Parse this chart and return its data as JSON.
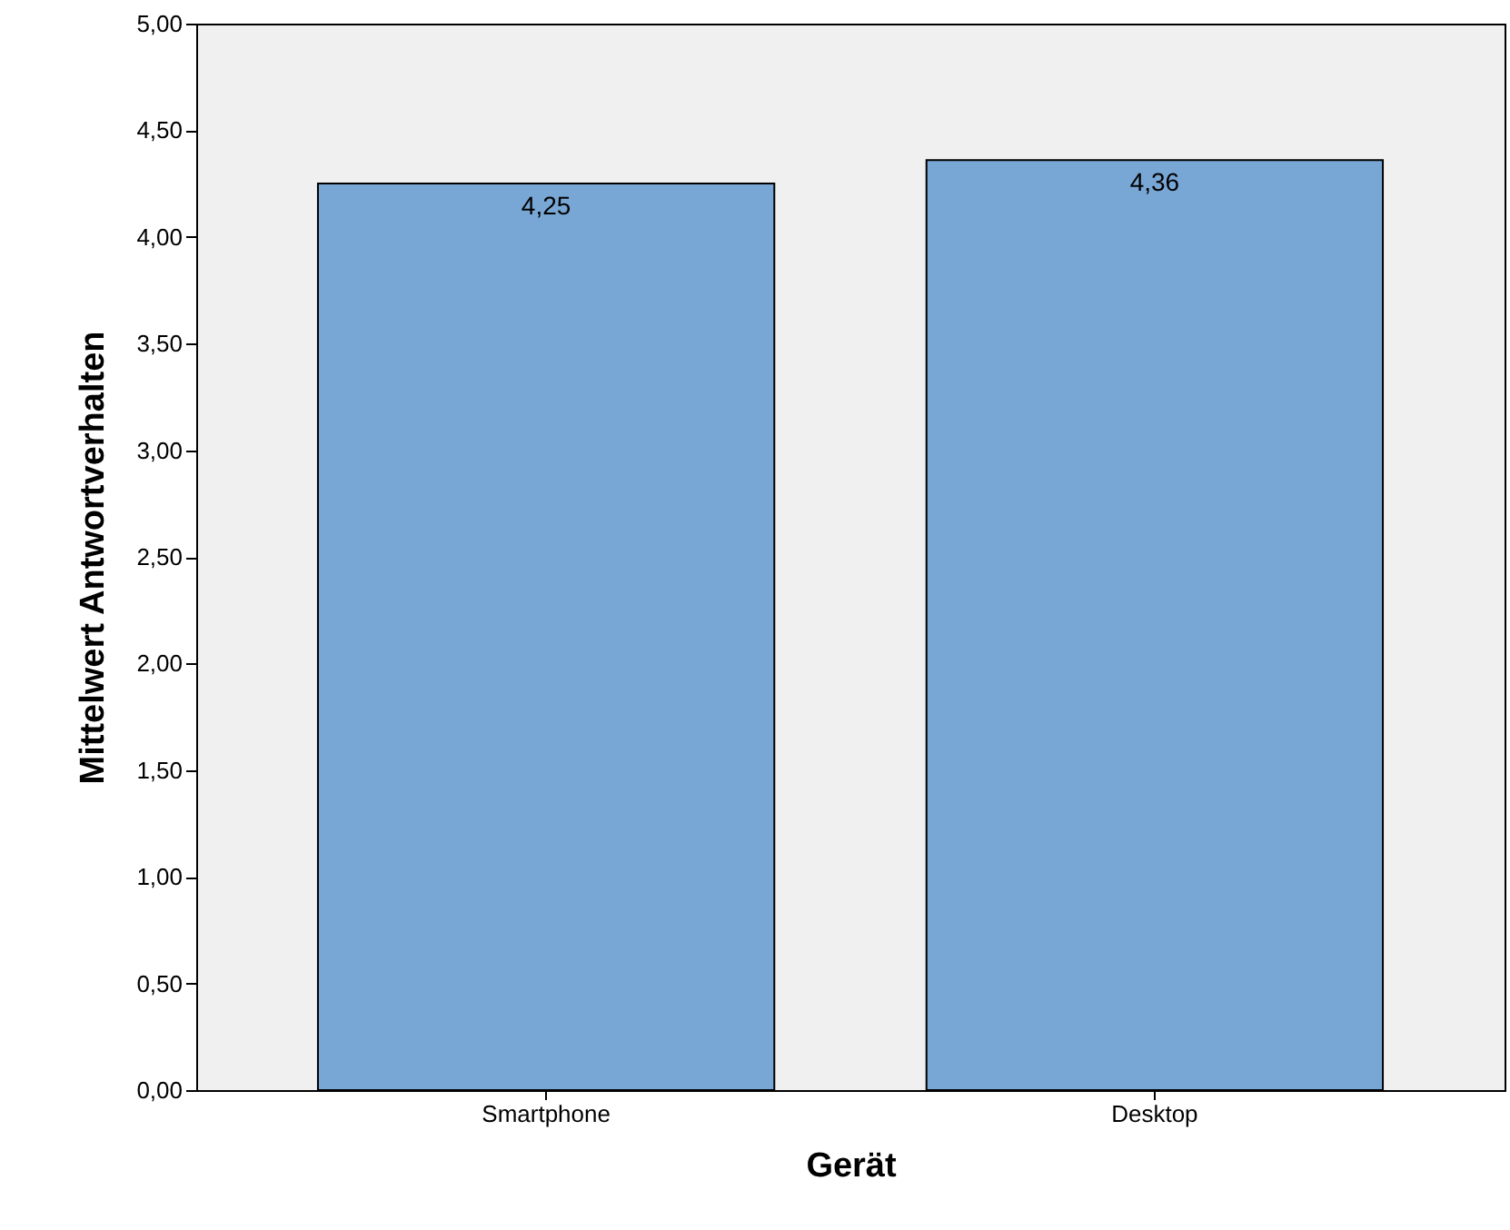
{
  "chart_data": {
    "type": "bar",
    "xlabel": "Gerät",
    "ylabel": "Mittelwert Antwortverhalten",
    "categories": [
      "Smartphone",
      "Desktop"
    ],
    "values": [
      4.25,
      4.36
    ],
    "value_labels": [
      "4,25",
      "4,36"
    ],
    "color": "#79a7d5",
    "ylim": [
      0,
      5
    ],
    "yticks": [
      {
        "value": 0,
        "label": "0,00"
      },
      {
        "value": 0.5,
        "label": "0,50"
      },
      {
        "value": 1,
        "label": "1,00"
      },
      {
        "value": 1.5,
        "label": "1,50"
      },
      {
        "value": 2,
        "label": "2,00"
      },
      {
        "value": 2.5,
        "label": "2,50"
      },
      {
        "value": 3,
        "label": "3,00"
      },
      {
        "value": 3.5,
        "label": "3,50"
      },
      {
        "value": 4,
        "label": "4,00"
      },
      {
        "value": 4.5,
        "label": "4,50"
      },
      {
        "value": 5,
        "label": "5,00"
      }
    ],
    "grid": false
  }
}
